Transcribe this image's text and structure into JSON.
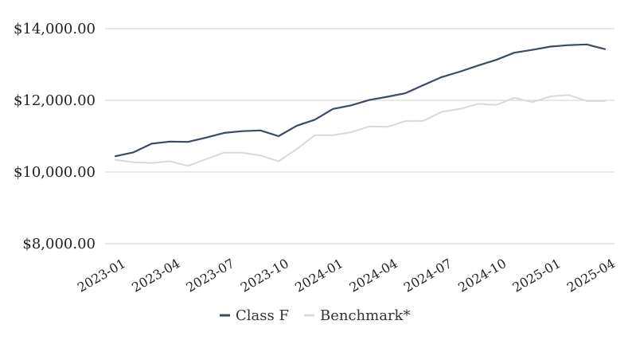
{
  "chart_data": {
    "type": "line",
    "title": "",
    "xlabel": "",
    "ylabel": "",
    "ylim": [
      8000,
      14000
    ],
    "y_ticks": [
      "$8,000.00",
      "$10,000.00",
      "$12,000.00",
      "$14,000.00"
    ],
    "y_tick_values": [
      8000,
      10000,
      12000,
      14000
    ],
    "x_tick_labels": [
      "2023-01",
      "2023-04",
      "2023-07",
      "2023-10",
      "2024-01",
      "2024-04",
      "2024-07",
      "2024-10",
      "2025-01",
      "2025-04"
    ],
    "x": [
      "2023-01",
      "2023-02",
      "2023-03",
      "2023-04",
      "2023-05",
      "2023-06",
      "2023-07",
      "2023-08",
      "2023-09",
      "2023-10",
      "2023-11",
      "2023-12",
      "2024-01",
      "2024-02",
      "2024-03",
      "2024-04",
      "2024-05",
      "2024-06",
      "2024-07",
      "2024-08",
      "2024-09",
      "2024-10",
      "2024-11",
      "2024-12",
      "2025-01",
      "2025-02",
      "2025-03",
      "2025-04"
    ],
    "series": [
      {
        "name": "Class F",
        "color": "#3d4a63",
        "values": [
          10440,
          10550,
          10790,
          10850,
          10840,
          10960,
          11090,
          11140,
          11160,
          11000,
          11290,
          11460,
          11760,
          11860,
          12010,
          12100,
          12200,
          12430,
          12650,
          12800,
          12970,
          13130,
          13330,
          13410,
          13500,
          13540,
          13560,
          13430
        ]
      },
      {
        "name": "Benchmark*",
        "color": "#d9d9d9",
        "values": [
          10340,
          10270,
          10250,
          10300,
          10170,
          10360,
          10540,
          10540,
          10460,
          10300,
          10640,
          11030,
          11030,
          11110,
          11270,
          11260,
          11420,
          11430,
          11680,
          11760,
          11900,
          11870,
          12070,
          11950,
          12110,
          12150,
          11980,
          11980
        ]
      }
    ],
    "grid": true,
    "legend_position": "bottom"
  }
}
